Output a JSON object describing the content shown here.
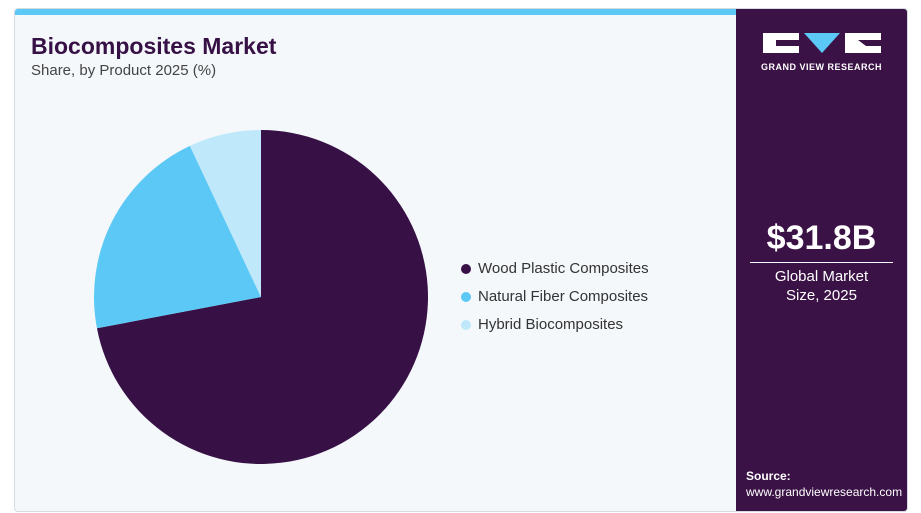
{
  "chart_data": {
    "type": "pie",
    "title": "Biocomposites Market",
    "subtitle": "Share, by Product 2025 (%)",
    "categories": [
      "Wood Plastic Composites",
      "Natural Fiber Composites",
      "Hybrid Biocomposites"
    ],
    "values": [
      72,
      21,
      7
    ],
    "colors": [
      "#371145",
      "#5bc8f5",
      "#bfe9fa"
    ]
  },
  "sidebar": {
    "brand": "GRAND VIEW RESEARCH",
    "market_size": "$31.8B",
    "market_label": "Global Market Size, 2025",
    "source_label": "Source:",
    "source_url": "www.grandviewresearch.com"
  }
}
